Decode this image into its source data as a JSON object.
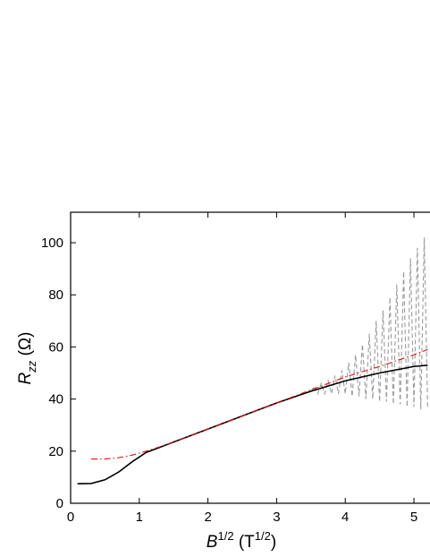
{
  "chart_data": {
    "type": "line",
    "xlabel": [
      "B",
      "1/2",
      " (T",
      "1/2",
      ")"
    ],
    "ylabel": [
      "R",
      "zz",
      " (Ω)"
    ],
    "xlim": [
      0,
      5.234
    ],
    "ylim": [
      0,
      111.7
    ],
    "xticks": [
      0,
      1,
      2,
      3,
      4,
      5
    ],
    "yticks": [
      0,
      20,
      40,
      60,
      80,
      100
    ],
    "series": [
      {
        "color": "#9a9a9a",
        "dash": "dash",
        "x": [
          3.5,
          3.55,
          3.6,
          3.65,
          3.7,
          3.75,
          3.8,
          3.85,
          3.9,
          3.95,
          4.0,
          4.05,
          4.1,
          4.15,
          4.2,
          4.25,
          4.3,
          4.35,
          4.4,
          4.45,
          4.5,
          4.55,
          4.6,
          4.65,
          4.7,
          4.75,
          4.8,
          4.85,
          4.9,
          4.95,
          5.0,
          5.05,
          5.1,
          5.15,
          5.2
        ],
        "values": [
          43,
          45,
          42,
          46,
          42,
          47,
          42,
          49,
          42,
          51,
          42,
          54,
          41,
          57,
          41,
          61,
          40,
          65,
          40,
          70,
          39,
          74,
          39,
          79,
          38,
          84,
          38,
          89,
          37,
          94,
          37,
          98,
          36,
          102,
          36
        ]
      },
      {
        "color": "#000000",
        "dash": "solid",
        "x": [
          0.1,
          0.3,
          0.5,
          0.7,
          0.9,
          1.1,
          1.3,
          1.5,
          2.0,
          2.5,
          3.0,
          3.5,
          4.0,
          4.5,
          5.0,
          5.2
        ],
        "values": [
          7.5,
          7.6,
          9,
          12,
          16,
          19.5,
          21.5,
          23.5,
          28.5,
          33.5,
          38.5,
          43,
          47,
          50,
          52.5,
          53
        ]
      },
      {
        "color": "#dd1111",
        "dash": "dash-dot",
        "x": [
          0.3,
          0.5,
          0.7,
          0.9,
          1.1,
          1.3,
          1.5,
          2.0,
          2.5,
          3.0,
          3.5,
          4.0,
          4.5,
          5.0,
          5.2
        ],
        "values": [
          17,
          17,
          17.5,
          18.5,
          20,
          21.7,
          23.5,
          28.5,
          33.5,
          38.5,
          43.5,
          48.5,
          52.5,
          57,
          59
        ]
      }
    ]
  }
}
